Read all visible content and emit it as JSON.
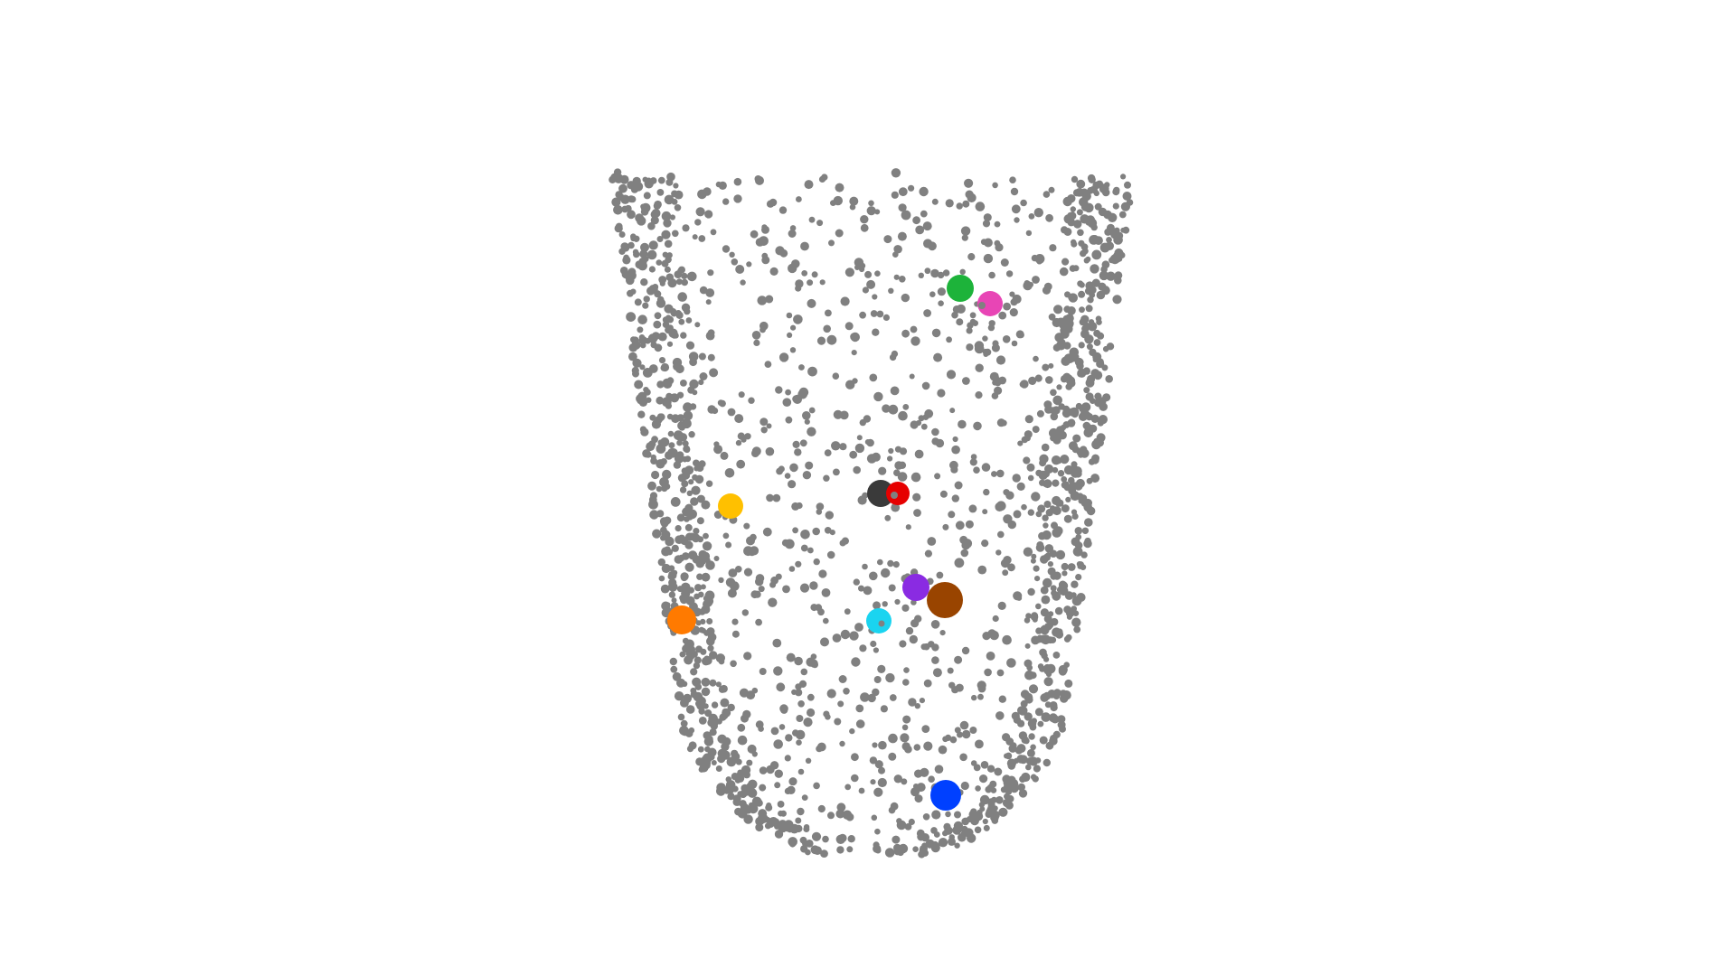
{
  "point_cloud": {
    "point_color": "#808080",
    "background_color": "#ffffff",
    "highlight_colors": [
      "#1db33a",
      "#e845b5",
      "#3a3a3a",
      "#e60000",
      "#ffc000",
      "#8a2be2",
      "#994400",
      "#ff7a00",
      "#1ad4f0",
      "#0040ff"
    ]
  }
}
